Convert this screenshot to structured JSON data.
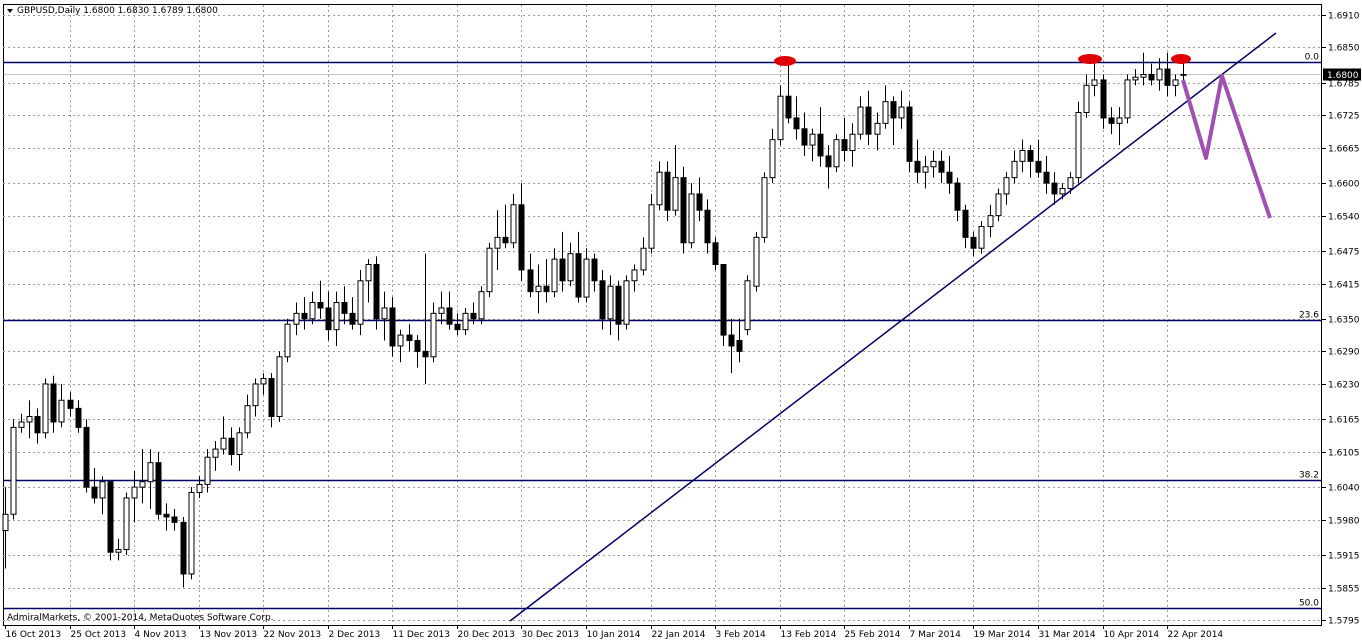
{
  "chart_data": {
    "type": "candlestick",
    "title": "GBPUSD,Daily  1.6800 1.6830 1.6789 1.6800",
    "footer": "AdmiralMarkets, © 2001-2014, MetaQuotes Software Corp.",
    "ylim": [
      1.5786,
      1.6928
    ],
    "yticks": [
      {
        "value": 1.691,
        "label": "1.6910"
      },
      {
        "value": 1.685,
        "label": "1.6850"
      },
      1.6785,
      1.6725,
      1.6665,
      {
        "value": 1.66,
        "label": "1.6600"
      },
      {
        "value": 1.654,
        "label": "1.6540"
      },
      1.6475,
      1.6415,
      {
        "value": 1.635,
        "label": "1.6350"
      },
      {
        "value": 1.629,
        "label": "1.6290"
      },
      {
        "value": 1.623,
        "label": "1.6230"
      },
      1.6165,
      1.6105,
      {
        "value": 1.604,
        "label": "1.6040"
      },
      {
        "value": 1.598,
        "label": "1.5980"
      },
      1.5915,
      1.5855,
      1.5795
    ],
    "grid": true,
    "up_color": "#ffffff",
    "down_color": "#000000",
    "outline_color": "#000000",
    "levels": [
      {
        "label": "0.0",
        "value": 1.6823
      },
      {
        "label": "23.6",
        "value": 1.6348
      },
      {
        "label": "38.2",
        "value": 1.6053
      },
      {
        "label": "50.0",
        "value": 1.5817
      }
    ],
    "level_color": "#000066",
    "last_price": {
      "value": 1.68,
      "label": "1.6800"
    },
    "categories": [
      "16 Oct 2013",
      null,
      null,
      null,
      null,
      null,
      null,
      null,
      "25 Oct 2013",
      null,
      null,
      null,
      null,
      null,
      null,
      null,
      "4 Nov 2013",
      null,
      null,
      null,
      null,
      null,
      null,
      null,
      "13 Nov 2013",
      null,
      null,
      null,
      null,
      null,
      null,
      null,
      "22 Nov 2013",
      null,
      null,
      null,
      null,
      null,
      null,
      null,
      "2 Dec 2013",
      null,
      null,
      null,
      null,
      null,
      null,
      null,
      "11 Dec 2013",
      null,
      null,
      null,
      null,
      null,
      null,
      null,
      "20 Dec 2013",
      null,
      null,
      null,
      null,
      null,
      null,
      null,
      "30 Dec 2013",
      null,
      null,
      null,
      null,
      null,
      null,
      null,
      "10 Jan 2014",
      null,
      null,
      null,
      null,
      null,
      null,
      null,
      "22 Jan 2014",
      null,
      null,
      null,
      null,
      null,
      null,
      null,
      "3 Feb 2014",
      null,
      null,
      null,
      null,
      null,
      null,
      null,
      "13 Feb 2014",
      null,
      null,
      null,
      null,
      null,
      null,
      null,
      "25 Feb 2014",
      null,
      null,
      null,
      null,
      null,
      null,
      null,
      "7 Mar 2014",
      null,
      null,
      null,
      null,
      null,
      null,
      null,
      "19 Mar 2014",
      null,
      null,
      null,
      null,
      null,
      null,
      null,
      "31 Mar 2014",
      null,
      null,
      null,
      null,
      null,
      null,
      null,
      "10 Apr 2014",
      null,
      null,
      null,
      null,
      null,
      null,
      null,
      "22 Apr 2014",
      null,
      null
    ],
    "ohlc": [
      [
        1.596,
        1.604,
        1.589,
        1.599
      ],
      [
        1.599,
        1.6165,
        1.598,
        1.615
      ],
      [
        1.615,
        1.6175,
        1.614,
        1.616
      ],
      [
        1.616,
        1.62,
        1.613,
        1.617
      ],
      [
        1.617,
        1.6185,
        1.612,
        1.614
      ],
      [
        1.614,
        1.624,
        1.613,
        1.623
      ],
      [
        1.623,
        1.6245,
        1.614,
        1.616
      ],
      [
        1.616,
        1.623,
        1.615,
        1.62
      ],
      [
        1.62,
        1.6215,
        1.617,
        1.6185
      ],
      [
        1.6185,
        1.62,
        1.614,
        1.615
      ],
      [
        1.615,
        1.6165,
        1.603,
        1.604
      ],
      [
        1.604,
        1.6075,
        1.601,
        1.602
      ],
      [
        1.602,
        1.606,
        1.599,
        1.605
      ],
      [
        1.605,
        1.605,
        1.5905,
        1.592
      ],
      [
        1.592,
        1.5945,
        1.5905,
        1.5925
      ],
      [
        1.5925,
        1.603,
        1.5915,
        1.602
      ],
      [
        1.602,
        1.607,
        1.5975,
        1.604
      ],
      [
        1.604,
        1.611,
        1.601,
        1.605
      ],
      [
        1.605,
        1.611,
        1.6,
        1.6085
      ],
      [
        1.6085,
        1.6105,
        1.598,
        1.599
      ],
      [
        1.599,
        1.601,
        1.596,
        1.5985
      ],
      [
        1.5985,
        1.6,
        1.596,
        1.5975
      ],
      [
        1.5975,
        1.5985,
        1.5855,
        1.588
      ],
      [
        1.588,
        1.604,
        1.587,
        1.603
      ],
      [
        1.603,
        1.606,
        1.602,
        1.6045
      ],
      [
        1.6045,
        1.611,
        1.603,
        1.6095
      ],
      [
        1.6095,
        1.6125,
        1.607,
        1.611
      ],
      [
        1.611,
        1.617,
        1.61,
        1.613
      ],
      [
        1.613,
        1.615,
        1.608,
        1.61
      ],
      [
        1.61,
        1.615,
        1.607,
        1.614
      ],
      [
        1.614,
        1.621,
        1.613,
        1.619
      ],
      [
        1.619,
        1.624,
        1.617,
        1.623
      ],
      [
        1.623,
        1.625,
        1.621,
        1.624
      ],
      [
        1.624,
        1.625,
        1.615,
        1.617
      ],
      [
        1.617,
        1.629,
        1.616,
        1.628
      ],
      [
        1.628,
        1.635,
        1.627,
        1.634
      ],
      [
        1.634,
        1.638,
        1.632,
        1.636
      ],
      [
        1.636,
        1.639,
        1.633,
        1.635
      ],
      [
        1.635,
        1.64,
        1.634,
        1.638
      ],
      [
        1.638,
        1.642,
        1.635,
        1.637
      ],
      [
        1.637,
        1.64,
        1.631,
        1.633
      ],
      [
        1.633,
        1.64,
        1.63,
        1.638
      ],
      [
        1.638,
        1.641,
        1.634,
        1.636
      ],
      [
        1.636,
        1.639,
        1.633,
        1.634
      ],
      [
        1.634,
        1.644,
        1.632,
        1.642
      ],
      [
        1.642,
        1.646,
        1.638,
        1.645
      ],
      [
        1.645,
        1.6465,
        1.633,
        1.635
      ],
      [
        1.635,
        1.64,
        1.631,
        1.637
      ],
      [
        1.637,
        1.639,
        1.628,
        1.63
      ],
      [
        1.63,
        1.633,
        1.627,
        1.632
      ],
      [
        1.632,
        1.634,
        1.629,
        1.631
      ],
      [
        1.631,
        1.632,
        1.626,
        1.629
      ],
      [
        1.629,
        1.647,
        1.623,
        1.628
      ],
      [
        1.628,
        1.638,
        1.627,
        1.636
      ],
      [
        1.636,
        1.64,
        1.634,
        1.637
      ],
      [
        1.637,
        1.64,
        1.633,
        1.634
      ],
      [
        1.634,
        1.636,
        1.632,
        1.633
      ],
      [
        1.633,
        1.637,
        1.632,
        1.636
      ],
      [
        1.636,
        1.638,
        1.634,
        1.635
      ],
      [
        1.635,
        1.641,
        1.634,
        1.64
      ],
      [
        1.64,
        1.649,
        1.639,
        1.648
      ],
      [
        1.648,
        1.655,
        1.644,
        1.65
      ],
      [
        1.65,
        1.656,
        1.648,
        1.649
      ],
      [
        1.649,
        1.658,
        1.648,
        1.656
      ],
      [
        1.656,
        1.66,
        1.642,
        1.644
      ],
      [
        1.644,
        1.647,
        1.639,
        1.64
      ],
      [
        1.64,
        1.645,
        1.636,
        1.641
      ],
      [
        1.641,
        1.646,
        1.638,
        1.64
      ],
      [
        1.64,
        1.648,
        1.639,
        1.646
      ],
      [
        1.646,
        1.651,
        1.64,
        1.642
      ],
      [
        1.642,
        1.649,
        1.641,
        1.647
      ],
      [
        1.647,
        1.651,
        1.638,
        1.639
      ],
      [
        1.639,
        1.648,
        1.638,
        1.646
      ],
      [
        1.646,
        1.647,
        1.64,
        1.642
      ],
      [
        1.642,
        1.644,
        1.633,
        1.635
      ],
      [
        1.635,
        1.643,
        1.632,
        1.641
      ],
      [
        1.641,
        1.642,
        1.631,
        1.634
      ],
      [
        1.634,
        1.643,
        1.633,
        1.642
      ],
      [
        1.642,
        1.645,
        1.64,
        1.644
      ],
      [
        1.644,
        1.65,
        1.643,
        1.648
      ],
      [
        1.648,
        1.658,
        1.647,
        1.656
      ],
      [
        1.656,
        1.664,
        1.655,
        1.662
      ],
      [
        1.662,
        1.664,
        1.653,
        1.655
      ],
      [
        1.655,
        1.667,
        1.654,
        1.661
      ],
      [
        1.661,
        1.663,
        1.647,
        1.649
      ],
      [
        1.649,
        1.66,
        1.648,
        1.658
      ],
      [
        1.658,
        1.661,
        1.653,
        1.655
      ],
      [
        1.655,
        1.657,
        1.647,
        1.649
      ],
      [
        1.649,
        1.65,
        1.644,
        1.645
      ],
      [
        1.645,
        1.645,
        1.63,
        1.632
      ],
      [
        1.632,
        1.635,
        1.625,
        1.63
      ],
      [
        1.631,
        1.635,
        1.627,
        1.629
      ],
      [
        1.633,
        1.643,
        1.632,
        1.642
      ],
      [
        1.641,
        1.651,
        1.64,
        1.65
      ],
      [
        1.65,
        1.662,
        1.649,
        1.661
      ],
      [
        1.661,
        1.67,
        1.66,
        1.668
      ],
      [
        1.668,
        1.678,
        1.667,
        1.676
      ],
      [
        1.676,
        1.6823,
        1.671,
        1.672
      ],
      [
        1.672,
        1.676,
        1.668,
        1.67
      ],
      [
        1.67,
        1.673,
        1.665,
        1.667
      ],
      [
        1.667,
        1.67,
        1.664,
        1.669
      ],
      [
        1.669,
        1.674,
        1.663,
        1.665
      ],
      [
        1.665,
        1.667,
        1.659,
        1.663
      ],
      [
        1.663,
        1.669,
        1.662,
        1.668
      ],
      [
        1.668,
        1.672,
        1.664,
        1.666
      ],
      [
        1.666,
        1.671,
        1.663,
        1.669
      ],
      [
        1.669,
        1.676,
        1.668,
        1.674
      ],
      [
        1.674,
        1.677,
        1.667,
        1.669
      ],
      [
        1.669,
        1.673,
        1.666,
        1.671
      ],
      [
        1.671,
        1.678,
        1.67,
        1.675
      ],
      [
        1.675,
        1.676,
        1.667,
        1.672
      ],
      [
        1.672,
        1.677,
        1.67,
        1.674
      ],
      [
        1.674,
        1.675,
        1.662,
        1.664
      ],
      [
        1.664,
        1.668,
        1.66,
        1.662
      ],
      [
        1.662,
        1.665,
        1.659,
        1.663
      ],
      [
        1.663,
        1.666,
        1.661,
        1.664
      ],
      [
        1.664,
        1.666,
        1.66,
        1.662
      ],
      [
        1.662,
        1.665,
        1.658,
        1.66
      ],
      [
        1.66,
        1.661,
        1.653,
        1.655
      ],
      [
        1.655,
        1.656,
        1.648,
        1.65
      ],
      [
        1.65,
        1.651,
        1.6465,
        1.648
      ],
      [
        1.648,
        1.653,
        1.647,
        1.652
      ],
      [
        1.652,
        1.656,
        1.65,
        1.654
      ],
      [
        1.654,
        1.659,
        1.653,
        1.658
      ],
      [
        1.658,
        1.662,
        1.656,
        1.661
      ],
      [
        1.661,
        1.666,
        1.66,
        1.664
      ],
      [
        1.664,
        1.668,
        1.662,
        1.666
      ],
      [
        1.666,
        1.667,
        1.661,
        1.664
      ],
      [
        1.664,
        1.668,
        1.661,
        1.662
      ],
      [
        1.662,
        1.665,
        1.658,
        1.66
      ],
      [
        1.66,
        1.662,
        1.656,
        1.658
      ],
      [
        1.658,
        1.66,
        1.657,
        1.659
      ],
      [
        1.659,
        1.662,
        1.658,
        1.661
      ],
      [
        1.661,
        1.675,
        1.66,
        1.673
      ],
      [
        1.673,
        1.68,
        1.672,
        1.678
      ],
      [
        1.678,
        1.6823,
        1.676,
        1.679
      ],
      [
        1.679,
        1.68,
        1.67,
        1.672
      ],
      [
        1.672,
        1.674,
        1.669,
        1.671
      ],
      [
        1.671,
        1.674,
        1.667,
        1.672
      ],
      [
        1.672,
        1.68,
        1.671,
        1.679
      ],
      [
        1.679,
        1.681,
        1.678,
        1.6795
      ],
      [
        1.6795,
        1.684,
        1.678,
        1.68
      ],
      [
        1.68,
        1.682,
        1.678,
        1.679
      ],
      [
        1.679,
        1.683,
        1.677,
        1.681
      ],
      [
        1.681,
        1.684,
        1.676,
        1.678
      ],
      [
        1.678,
        1.68,
        1.676,
        1.679
      ],
      [
        1.68,
        1.683,
        1.6789,
        1.68
      ]
    ]
  }
}
